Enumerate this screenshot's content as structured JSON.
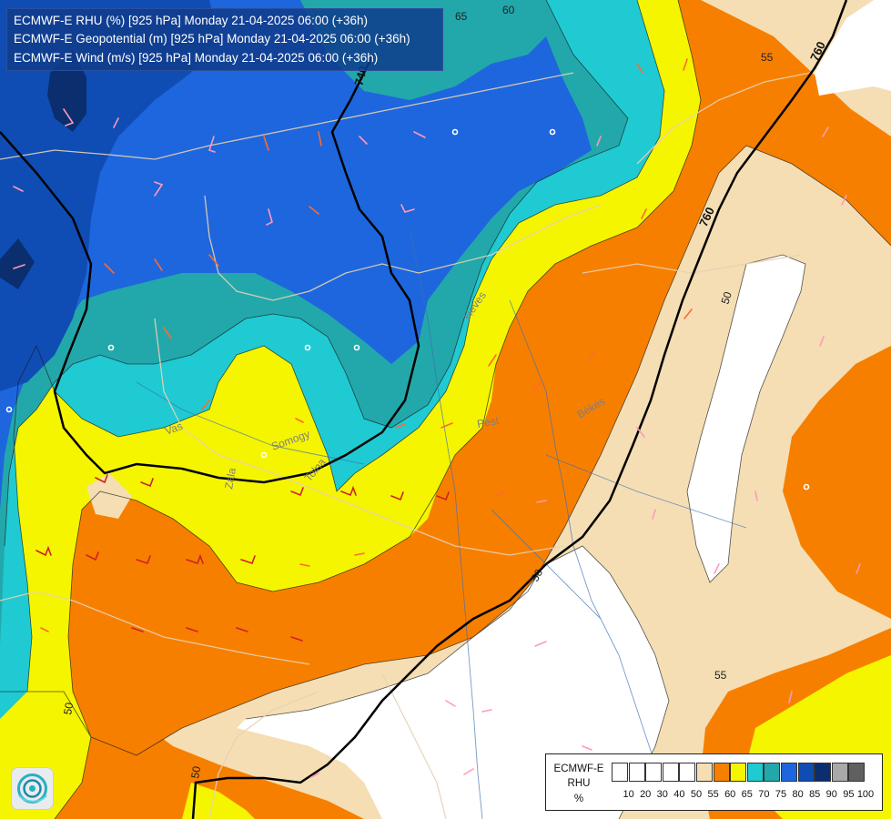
{
  "titles": [
    "ECMWF-E RHU (%) [925 hPa] Monday 21-04-2025 06:00 (+36h)",
    "ECMWF-E Geopotential (m) [925 hPa] Monday 21-04-2025 06:00 (+36h)",
    "ECMWF-E Wind (m/s) [925 hPa] Monday 21-04-2025 06:00 (+36h)"
  ],
  "legend": {
    "name": "ECMWF-E",
    "variable": "RHU",
    "unit": "%",
    "colors": [
      "#ffffff",
      "#ffffff",
      "#ffffff",
      "#ffffff",
      "#ffffff",
      "#f5deb3",
      "#f77f00",
      "#f5f500",
      "#1fcad2",
      "#22a8ab",
      "#1e66dd",
      "#0f4db5",
      "#0b2e6e",
      "#a9a9a9",
      "#606060"
    ],
    "ticks": [
      "10",
      "20",
      "30",
      "40",
      "50",
      "55",
      "60",
      "65",
      "70",
      "75",
      "80",
      "85",
      "90",
      "95",
      "100"
    ]
  },
  "contour_labels": {
    "humidity": [
      "65",
      "60",
      "55",
      "50",
      "50",
      "55",
      "50",
      "50"
    ],
    "geopotential": [
      "740",
      "760",
      "760"
    ]
  },
  "place_labels": [
    "Vas",
    "Somogy",
    "Tolna",
    "Zala",
    "Pest",
    "Heves",
    "Békés"
  ],
  "logo_icon": "ecmwf-swirl-icon"
}
